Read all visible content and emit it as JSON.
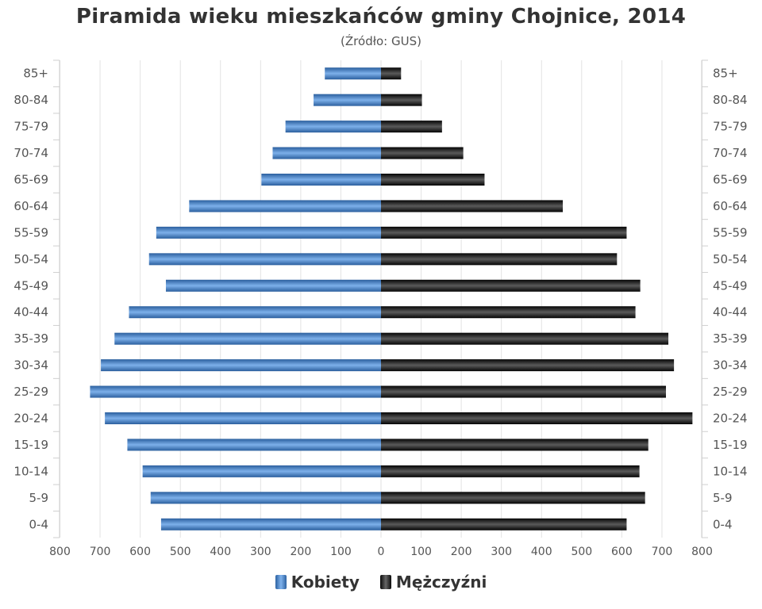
{
  "title": "Piramida wieku mieszkańców gminy Chojnice, 2014",
  "subtitle": "(Źródło: GUS)",
  "legend": {
    "women": "Kobiety",
    "men": "Mężczyźni"
  },
  "colors": {
    "women": "#3a74b8",
    "men": "#111111",
    "grid": "#e2e2e2",
    "text": "#555555"
  },
  "chart_data": {
    "type": "bar",
    "orientation": "horizontal",
    "categories": [
      "85+",
      "80-84",
      "75-79",
      "70-74",
      "65-69",
      "60-64",
      "55-59",
      "50-54",
      "45-49",
      "40-44",
      "35-39",
      "30-34",
      "25-29",
      "20-24",
      "15-19",
      "10-14",
      "5-9",
      "0-4"
    ],
    "series": [
      {
        "name": "Kobiety",
        "side": "left",
        "values": [
          140,
          168,
          238,
          270,
          298,
          478,
          560,
          578,
          536,
          628,
          664,
          698,
          725,
          688,
          632,
          594,
          574,
          548
        ]
      },
      {
        "name": "Mężczyźni",
        "side": "right",
        "values": [
          50,
          102,
          152,
          205,
          258,
          453,
          612,
          588,
          646,
          634,
          716,
          730,
          710,
          776,
          666,
          644,
          658,
          612
        ]
      }
    ],
    "x_ticks": [
      800,
      700,
      600,
      500,
      400,
      300,
      200,
      100,
      0,
      100,
      200,
      300,
      400,
      500,
      600,
      700,
      800
    ],
    "xlim": [
      -800,
      800
    ],
    "grid": true,
    "legend_position": "bottom-center"
  }
}
